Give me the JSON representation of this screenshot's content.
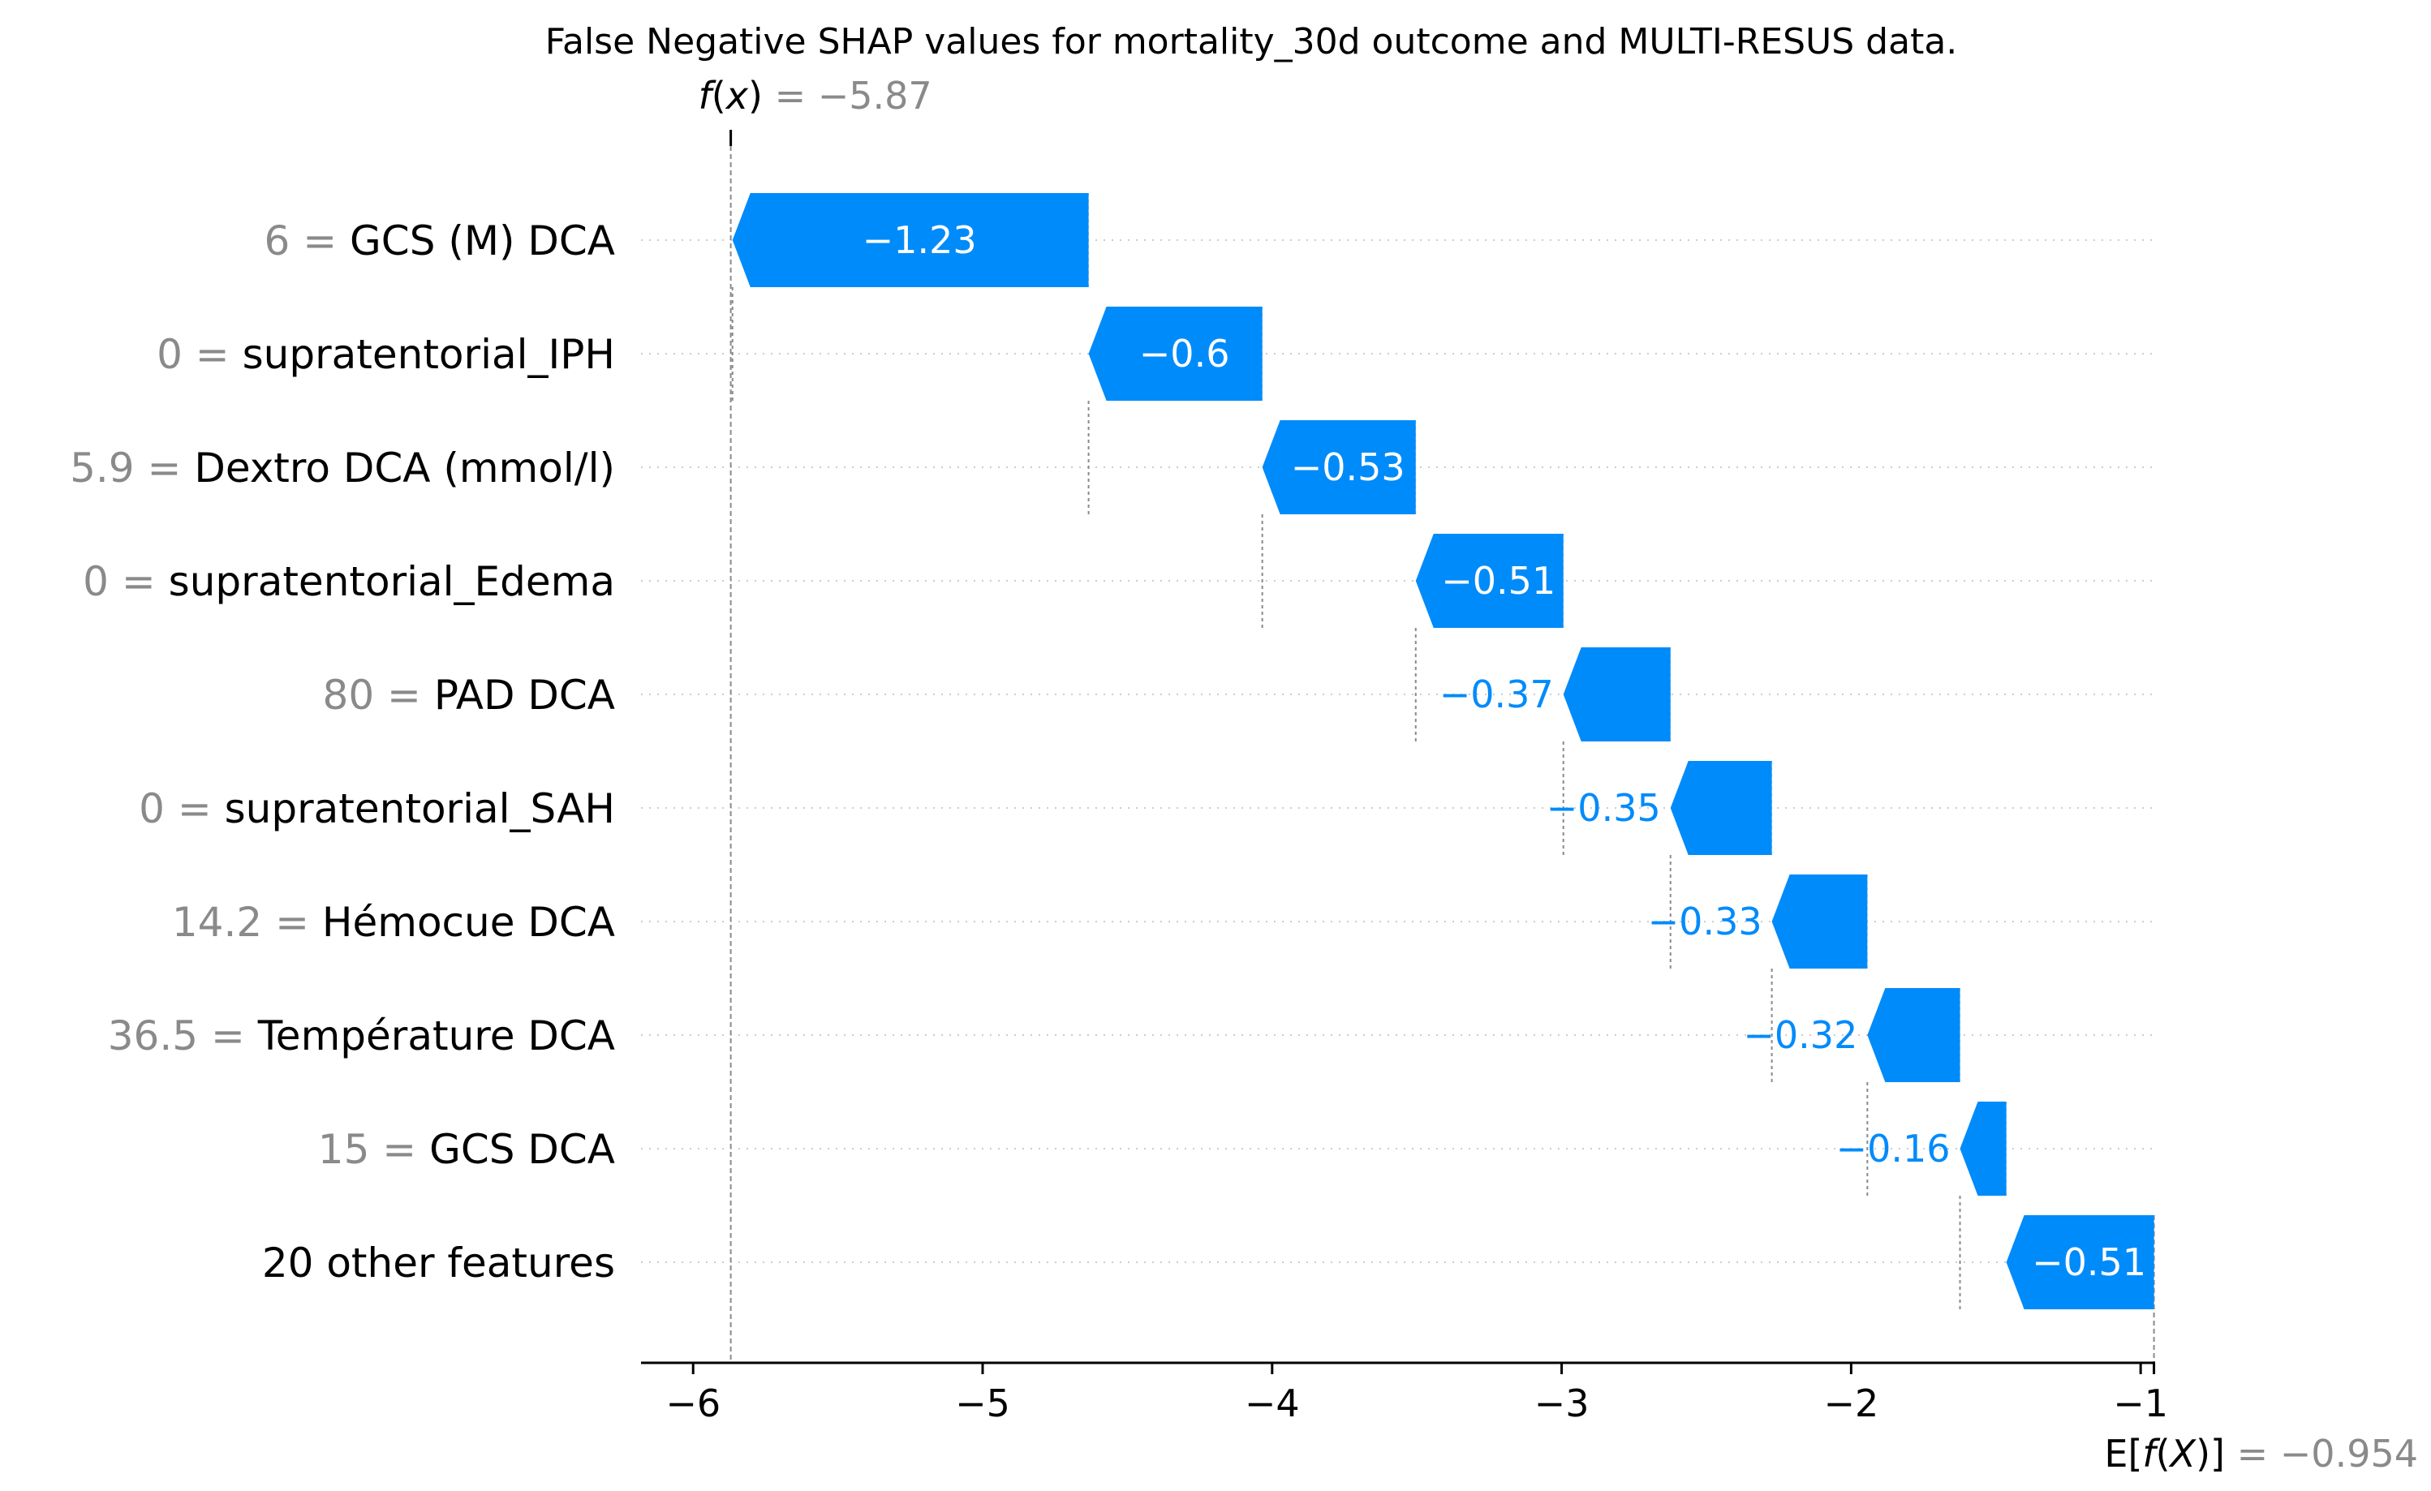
{
  "chart_data": {
    "type": "waterfall",
    "title": "False Negative SHAP values for mortality_30d outcome and MULTI-RESUS data.",
    "fx": {
      "label_f": "f",
      "label_x": "x",
      "value_text": "= −5.87",
      "value": -5.87
    },
    "base": {
      "label_e": "E[",
      "label_f": "f",
      "label_X": "X",
      "label_close": ")]",
      "value_text": "= −0.954",
      "value": -0.954
    },
    "xlim": [
      -6.18,
      -0.95
    ],
    "xticks": [
      -6,
      -5,
      -4,
      -3,
      -2,
      -1
    ],
    "xtick_labels": [
      "−6",
      "−5",
      "−4",
      "−3",
      "−2",
      "−1"
    ],
    "features": [
      {
        "value": "6",
        "name": "GCS (M) DCA",
        "shap": -1.23,
        "label": "−1.23"
      },
      {
        "value": "0",
        "name": "supratentorial_IPH",
        "shap": -0.6,
        "label": "−0.6"
      },
      {
        "value": "5.9",
        "name": "Dextro DCA (mmol/l)",
        "shap": -0.53,
        "label": "−0.53"
      },
      {
        "value": "0",
        "name": "supratentorial_Edema",
        "shap": -0.51,
        "label": "−0.51"
      },
      {
        "value": "80",
        "name": "PAD DCA",
        "shap": -0.37,
        "label": "−0.37"
      },
      {
        "value": "0",
        "name": "supratentorial_SAH",
        "shap": -0.35,
        "label": "−0.35"
      },
      {
        "value": "14.2",
        "name": "Hémocue DCA",
        "shap": -0.33,
        "label": "−0.33"
      },
      {
        "value": "36.5",
        "name": "Température DCA",
        "shap": -0.32,
        "label": "−0.32"
      },
      {
        "value": "15",
        "name": "GCS DCA",
        "shap": -0.16,
        "label": "−0.16"
      },
      {
        "value": "",
        "name": "20 other features",
        "shap": -0.51,
        "label": "−0.51"
      }
    ],
    "colors": {
      "negative": "#008bfb",
      "axis": "#000000",
      "muted": "#8a8a8a",
      "grid": "#cccccc"
    }
  }
}
